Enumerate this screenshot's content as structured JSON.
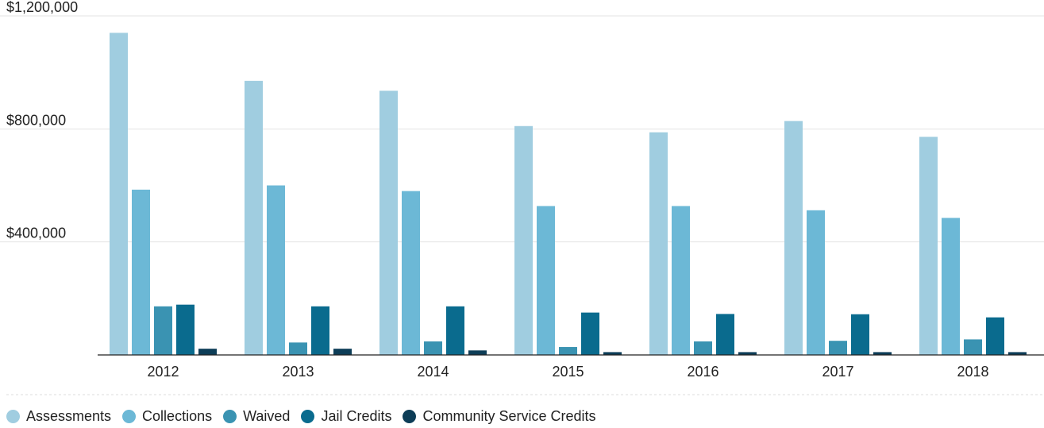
{
  "chart_data": {
    "type": "bar",
    "categories": [
      "2012",
      "2013",
      "2014",
      "2015",
      "2016",
      "2017",
      "2018"
    ],
    "series": [
      {
        "name": "Assessments",
        "color": "#a0cde0",
        "values": [
          1140000,
          970000,
          935000,
          810000,
          788000,
          828000,
          772000
        ]
      },
      {
        "name": "Collections",
        "color": "#6cb8d6",
        "values": [
          585000,
          600000,
          580000,
          527000,
          527000,
          512000,
          485000
        ]
      },
      {
        "name": "Waived",
        "color": "#3a93b2",
        "values": [
          172000,
          44000,
          48000,
          28000,
          48000,
          50000,
          55000
        ]
      },
      {
        "name": "Jail Credits",
        "color": "#0a6b8e",
        "values": [
          178000,
          172000,
          172000,
          150000,
          145000,
          144000,
          133000
        ]
      },
      {
        "name": "Community Service Credits",
        "color": "#0d3d57",
        "values": [
          22000,
          22000,
          16000,
          10000,
          10000,
          10000,
          10000
        ]
      }
    ],
    "y_ticks": [
      "$400,000",
      "$800,000",
      "$1,200,000"
    ],
    "y_tick_values": [
      400000,
      800000,
      1200000
    ],
    "ylim": [
      0,
      1200000
    ],
    "grid": true,
    "legend_position": "bottom-left",
    "title": "",
    "xlabel": "",
    "ylabel": ""
  }
}
